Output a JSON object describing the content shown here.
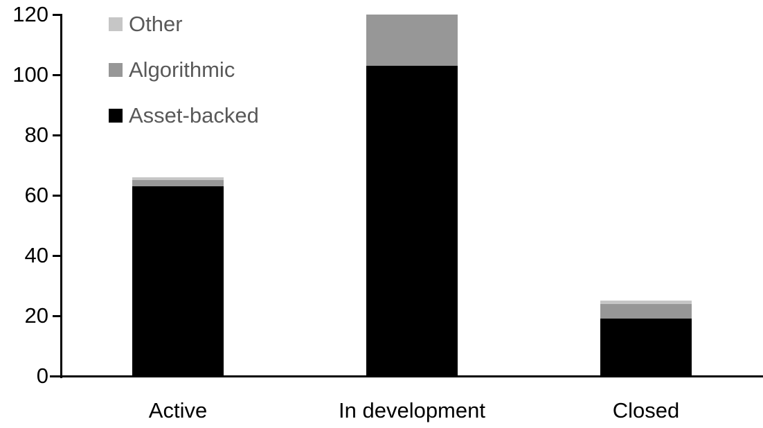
{
  "chart_data": {
    "type": "bar",
    "stacked": true,
    "title": "",
    "categories": [
      "Active",
      "In development",
      "Closed"
    ],
    "series": [
      {
        "name": "Asset-backed",
        "color": "#000000",
        "values": [
          63,
          103,
          19
        ]
      },
      {
        "name": "Algorithmic",
        "color": "#979797",
        "values": [
          2,
          17,
          5
        ]
      },
      {
        "name": "Other",
        "color": "#c6c6c6",
        "values": [
          1,
          0,
          1
        ]
      }
    ],
    "totals": [
      66,
      120,
      25
    ],
    "y_axis": {
      "min": 0,
      "max": 120,
      "tick_step": 20,
      "tick_labels": [
        "0",
        "20",
        "40",
        "60",
        "80",
        "100",
        "120"
      ]
    },
    "x_axis": {
      "labels": [
        "Active",
        "In development",
        "Closed"
      ]
    },
    "legend": {
      "position": "top-left",
      "order": [
        "Other",
        "Algorithmic",
        "Asset-backed"
      ],
      "text_color": "#595959"
    },
    "axis_color": "#000000",
    "background_color": "#ffffff",
    "grid": false
  }
}
